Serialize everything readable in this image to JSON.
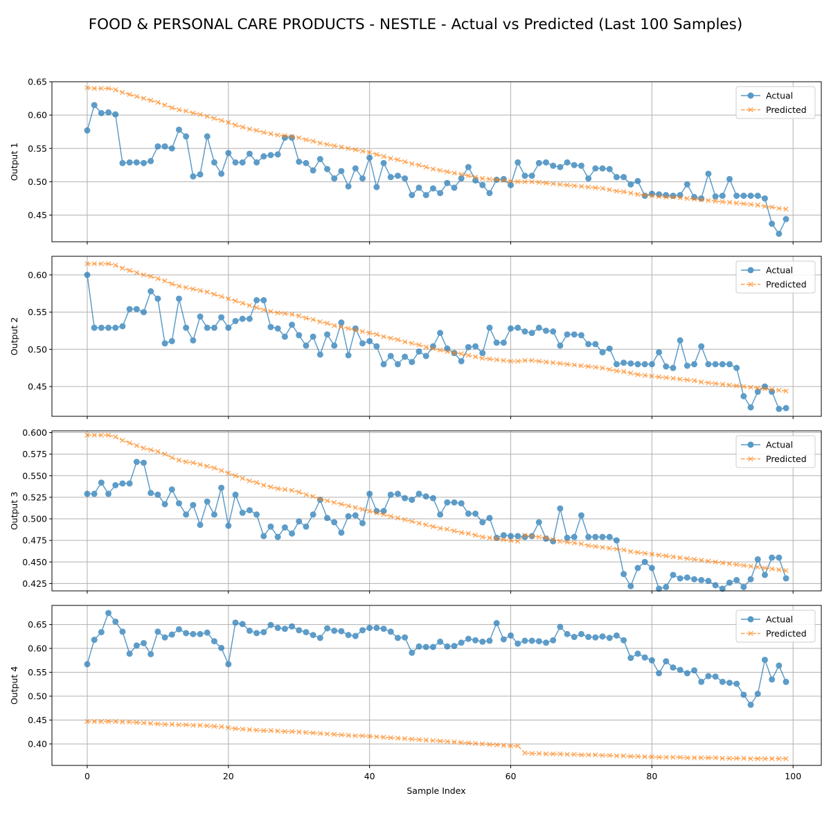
{
  "colors": {
    "actual": "#1f77b4",
    "predicted": "#ff7f0e",
    "grid": "#b0b0b0"
  },
  "chart_data": {
    "type": "line",
    "title": "FOOD & PERSONAL CARE PRODUCTS - NESTLE - Actual vs Predicted (Last 100 Samples)",
    "xlabel": "Sample Index",
    "xlim": [
      -5,
      104
    ],
    "xticks": [
      0,
      20,
      40,
      60,
      80,
      100
    ],
    "xtick_labels": [
      "0",
      "20",
      "40",
      "60",
      "80",
      "100"
    ],
    "grid": true,
    "legend_placement": "top-right",
    "legend_entries": [
      "Actual",
      "Predicted"
    ],
    "panels": [
      {
        "ylabel": "Output 1",
        "ylim": [
          0.41,
          0.65
        ],
        "yticks": [
          0.45,
          0.5,
          0.55,
          0.6,
          0.65
        ],
        "ytick_labels": [
          "0.45",
          "0.50",
          "0.55",
          "0.60",
          "0.65"
        ],
        "series": [
          {
            "name": "Actual",
            "marker": "o",
            "values": [
              0.577,
              0.615,
              0.603,
              0.604,
              0.601,
              0.528,
              0.529,
              0.529,
              0.528,
              0.531,
              0.553,
              0.553,
              0.55,
              0.578,
              0.568,
              0.508,
              0.511,
              0.568,
              0.529,
              0.512,
              0.543,
              0.529,
              0.529,
              0.542,
              0.529,
              0.538,
              0.54,
              0.541,
              0.566,
              0.566,
              0.53,
              0.528,
              0.517,
              0.534,
              0.519,
              0.505,
              0.516,
              0.493,
              0.52,
              0.505,
              0.536,
              0.492,
              0.528,
              0.507,
              0.509,
              0.505,
              0.48,
              0.491,
              0.48,
              0.49,
              0.483,
              0.498,
              0.491,
              0.505,
              0.522,
              0.502,
              0.495,
              0.483,
              0.503,
              0.504,
              0.495,
              0.529,
              0.509,
              0.509,
              0.528,
              0.529,
              0.524,
              0.522,
              0.529,
              0.525,
              0.524,
              0.505,
              0.52,
              0.52,
              0.519,
              0.507,
              0.507,
              0.496,
              0.501,
              0.479,
              0.482,
              0.481,
              0.48,
              0.479,
              0.48,
              0.496,
              0.477,
              0.475,
              0.512,
              0.478,
              0.479,
              0.504,
              0.479,
              0.479,
              0.479,
              0.479,
              0.475,
              0.437,
              0.422,
              0.444
            ]
          },
          {
            "name": "Predicted",
            "marker": "x",
            "values": [
              0.641,
              0.64,
              0.64,
              0.64,
              0.638,
              0.634,
              0.631,
              0.628,
              0.625,
              0.622,
              0.619,
              0.615,
              0.611,
              0.608,
              0.606,
              0.603,
              0.601,
              0.598,
              0.595,
              0.592,
              0.589,
              0.585,
              0.582,
              0.579,
              0.577,
              0.574,
              0.572,
              0.57,
              0.569,
              0.568,
              0.566,
              0.563,
              0.561,
              0.558,
              0.556,
              0.554,
              0.552,
              0.55,
              0.548,
              0.546,
              0.544,
              0.541,
              0.538,
              0.535,
              0.533,
              0.53,
              0.527,
              0.525,
              0.522,
              0.519,
              0.517,
              0.515,
              0.513,
              0.511,
              0.509,
              0.507,
              0.505,
              0.504,
              0.503,
              0.502,
              0.501,
              0.5,
              0.5,
              0.5,
              0.499,
              0.498,
              0.497,
              0.496,
              0.495,
              0.494,
              0.493,
              0.492,
              0.491,
              0.49,
              0.488,
              0.486,
              0.485,
              0.483,
              0.481,
              0.48,
              0.479,
              0.478,
              0.477,
              0.477,
              0.476,
              0.475,
              0.474,
              0.473,
              0.472,
              0.471,
              0.47,
              0.469,
              0.468,
              0.467,
              0.466,
              0.465,
              0.463,
              0.462,
              0.46,
              0.459
            ]
          }
        ]
      },
      {
        "ylabel": "Output 2",
        "ylim": [
          0.41,
          0.625
        ],
        "yticks": [
          0.45,
          0.5,
          0.55,
          0.6
        ],
        "ytick_labels": [
          "0.45",
          "0.50",
          "0.55",
          "0.60"
        ],
        "series": [
          {
            "name": "Actual",
            "marker": "o",
            "values": [
              0.6,
              0.529,
              0.529,
              0.529,
              0.529,
              0.531,
              0.554,
              0.554,
              0.55,
              0.578,
              0.568,
              0.508,
              0.511,
              0.568,
              0.529,
              0.512,
              0.544,
              0.529,
              0.529,
              0.543,
              0.529,
              0.538,
              0.541,
              0.541,
              0.566,
              0.566,
              0.53,
              0.528,
              0.517,
              0.533,
              0.519,
              0.505,
              0.517,
              0.493,
              0.52,
              0.505,
              0.536,
              0.492,
              0.528,
              0.508,
              0.511,
              0.504,
              0.48,
              0.491,
              0.48,
              0.49,
              0.483,
              0.497,
              0.491,
              0.504,
              0.522,
              0.501,
              0.495,
              0.484,
              0.503,
              0.504,
              0.495,
              0.529,
              0.509,
              0.509,
              0.528,
              0.529,
              0.524,
              0.522,
              0.529,
              0.525,
              0.524,
              0.505,
              0.52,
              0.52,
              0.519,
              0.507,
              0.507,
              0.496,
              0.501,
              0.48,
              0.482,
              0.481,
              0.48,
              0.48,
              0.48,
              0.496,
              0.477,
              0.475,
              0.512,
              0.478,
              0.48,
              0.504,
              0.48,
              0.48,
              0.48,
              0.48,
              0.475,
              0.437,
              0.422,
              0.443,
              0.45,
              0.443,
              0.42,
              0.421
            ]
          },
          {
            "name": "Predicted",
            "marker": "x",
            "values": [
              0.615,
              0.615,
              0.615,
              0.615,
              0.613,
              0.609,
              0.606,
              0.603,
              0.6,
              0.598,
              0.595,
              0.592,
              0.588,
              0.585,
              0.583,
              0.581,
              0.579,
              0.577,
              0.574,
              0.571,
              0.568,
              0.565,
              0.562,
              0.559,
              0.556,
              0.553,
              0.551,
              0.549,
              0.548,
              0.547,
              0.545,
              0.542,
              0.54,
              0.537,
              0.535,
              0.532,
              0.53,
              0.528,
              0.526,
              0.524,
              0.522,
              0.52,
              0.517,
              0.515,
              0.513,
              0.51,
              0.508,
              0.506,
              0.503,
              0.501,
              0.499,
              0.497,
              0.495,
              0.494,
              0.492,
              0.49,
              0.488,
              0.487,
              0.486,
              0.485,
              0.484,
              0.484,
              0.485,
              0.485,
              0.484,
              0.483,
              0.482,
              0.481,
              0.48,
              0.479,
              0.478,
              0.477,
              0.476,
              0.475,
              0.473,
              0.471,
              0.47,
              0.468,
              0.466,
              0.465,
              0.464,
              0.463,
              0.462,
              0.461,
              0.46,
              0.459,
              0.458,
              0.456,
              0.455,
              0.454,
              0.453,
              0.452,
              0.451,
              0.45,
              0.449,
              0.448,
              0.447,
              0.446,
              0.445,
              0.444
            ]
          }
        ]
      },
      {
        "ylabel": "Output 3",
        "ylim": [
          0.4165,
          0.602
        ],
        "yticks": [
          0.425,
          0.45,
          0.475,
          0.5,
          0.525,
          0.55,
          0.575,
          0.6
        ],
        "ytick_labels": [
          "0.425",
          "0.450",
          "0.475",
          "0.500",
          "0.525",
          "0.550",
          "0.575",
          "0.600"
        ],
        "series": [
          {
            "name": "Actual",
            "marker": "o",
            "values": [
              0.529,
              0.529,
              0.542,
              0.529,
              0.539,
              0.541,
              0.541,
              0.566,
              0.565,
              0.53,
              0.528,
              0.517,
              0.534,
              0.518,
              0.505,
              0.516,
              0.493,
              0.52,
              0.505,
              0.536,
              0.492,
              0.528,
              0.507,
              0.51,
              0.505,
              0.48,
              0.491,
              0.479,
              0.49,
              0.483,
              0.497,
              0.491,
              0.505,
              0.522,
              0.501,
              0.496,
              0.484,
              0.503,
              0.504,
              0.495,
              0.529,
              0.509,
              0.509,
              0.528,
              0.529,
              0.524,
              0.522,
              0.529,
              0.526,
              0.524,
              0.505,
              0.519,
              0.519,
              0.518,
              0.506,
              0.506,
              0.496,
              0.501,
              0.478,
              0.481,
              0.48,
              0.48,
              0.479,
              0.48,
              0.496,
              0.477,
              0.474,
              0.512,
              0.478,
              0.479,
              0.504,
              0.479,
              0.479,
              0.479,
              0.479,
              0.475,
              0.436,
              0.422,
              0.443,
              0.45,
              0.443,
              0.419,
              0.421,
              0.435,
              0.431,
              0.432,
              0.43,
              0.429,
              0.428,
              0.423,
              0.419,
              0.426,
              0.429,
              0.421,
              0.43,
              0.453,
              0.435,
              0.455,
              0.455,
              0.431
            ]
          },
          {
            "name": "Predicted",
            "marker": "x",
            "values": [
              0.597,
              0.597,
              0.597,
              0.597,
              0.595,
              0.591,
              0.588,
              0.585,
              0.582,
              0.58,
              0.578,
              0.575,
              0.571,
              0.568,
              0.566,
              0.565,
              0.563,
              0.561,
              0.559,
              0.556,
              0.553,
              0.55,
              0.547,
              0.544,
              0.542,
              0.539,
              0.537,
              0.535,
              0.534,
              0.533,
              0.531,
              0.528,
              0.526,
              0.523,
              0.521,
              0.519,
              0.517,
              0.515,
              0.513,
              0.511,
              0.509,
              0.507,
              0.505,
              0.503,
              0.501,
              0.499,
              0.497,
              0.495,
              0.493,
              0.491,
              0.489,
              0.488,
              0.486,
              0.484,
              0.483,
              0.481,
              0.479,
              0.478,
              0.477,
              0.476,
              0.475,
              0.474,
              0.481,
              0.48,
              0.479,
              0.478,
              0.476,
              0.474,
              0.473,
              0.472,
              0.471,
              0.469,
              0.468,
              0.467,
              0.466,
              0.465,
              0.464,
              0.462,
              0.461,
              0.46,
              0.459,
              0.458,
              0.457,
              0.456,
              0.455,
              0.454,
              0.453,
              0.452,
              0.451,
              0.45,
              0.449,
              0.448,
              0.447,
              0.446,
              0.445,
              0.444,
              0.443,
              0.442,
              0.441,
              0.44
            ]
          }
        ]
      },
      {
        "ylabel": "Output 4",
        "ylim": [
          0.355,
          0.69
        ],
        "yticks": [
          0.4,
          0.45,
          0.5,
          0.55,
          0.6,
          0.65
        ],
        "ytick_labels": [
          "0.40",
          "0.45",
          "0.50",
          "0.55",
          "0.60",
          "0.65"
        ],
        "series": [
          {
            "name": "Actual",
            "marker": "o",
            "values": [
              0.567,
              0.618,
              0.634,
              0.674,
              0.656,
              0.635,
              0.589,
              0.606,
              0.611,
              0.588,
              0.635,
              0.623,
              0.629,
              0.64,
              0.632,
              0.63,
              0.63,
              0.633,
              0.615,
              0.601,
              0.567,
              0.654,
              0.651,
              0.637,
              0.632,
              0.634,
              0.649,
              0.643,
              0.641,
              0.646,
              0.638,
              0.634,
              0.628,
              0.622,
              0.642,
              0.637,
              0.636,
              0.628,
              0.626,
              0.638,
              0.643,
              0.643,
              0.641,
              0.635,
              0.622,
              0.623,
              0.591,
              0.604,
              0.603,
              0.603,
              0.614,
              0.604,
              0.605,
              0.612,
              0.62,
              0.617,
              0.614,
              0.616,
              0.653,
              0.619,
              0.627,
              0.61,
              0.616,
              0.616,
              0.615,
              0.612,
              0.617,
              0.645,
              0.63,
              0.624,
              0.63,
              0.624,
              0.623,
              0.625,
              0.622,
              0.627,
              0.617,
              0.58,
              0.589,
              0.581,
              0.575,
              0.548,
              0.573,
              0.56,
              0.555,
              0.548,
              0.554,
              0.53,
              0.542,
              0.541,
              0.53,
              0.528,
              0.526,
              0.503,
              0.482,
              0.505,
              0.576,
              0.535,
              0.564,
              0.53
            ]
          },
          {
            "name": "Predicted",
            "marker": "x",
            "values": [
              0.447,
              0.447,
              0.447,
              0.447,
              0.447,
              0.446,
              0.446,
              0.445,
              0.444,
              0.443,
              0.442,
              0.441,
              0.441,
              0.44,
              0.44,
              0.439,
              0.439,
              0.438,
              0.437,
              0.436,
              0.434,
              0.432,
              0.431,
              0.43,
              0.429,
              0.428,
              0.428,
              0.427,
              0.426,
              0.426,
              0.425,
              0.424,
              0.423,
              0.422,
              0.421,
              0.42,
              0.419,
              0.418,
              0.417,
              0.417,
              0.416,
              0.415,
              0.414,
              0.413,
              0.412,
              0.411,
              0.41,
              0.409,
              0.408,
              0.407,
              0.406,
              0.405,
              0.404,
              0.403,
              0.402,
              0.401,
              0.4,
              0.399,
              0.398,
              0.397,
              0.396,
              0.396,
              0.381,
              0.38,
              0.38,
              0.379,
              0.379,
              0.379,
              0.378,
              0.378,
              0.377,
              0.377,
              0.377,
              0.376,
              0.376,
              0.375,
              0.375,
              0.374,
              0.374,
              0.373,
              0.373,
              0.372,
              0.372,
              0.372,
              0.372,
              0.371,
              0.371,
              0.371,
              0.371,
              0.371,
              0.37,
              0.37,
              0.37,
              0.37,
              0.369,
              0.369,
              0.369,
              0.369,
              0.369,
              0.369
            ]
          }
        ]
      }
    ]
  }
}
